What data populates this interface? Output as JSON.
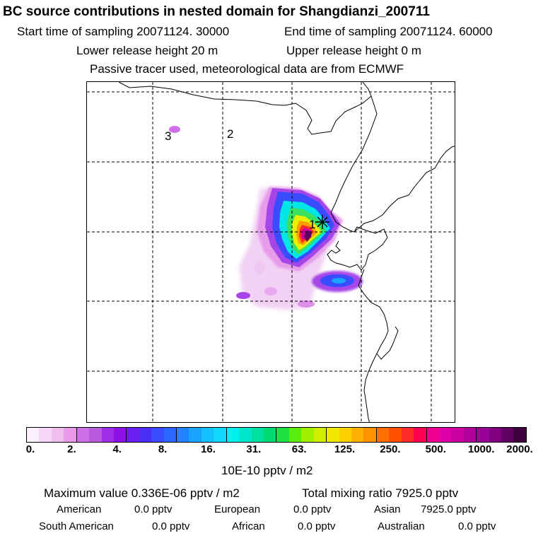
{
  "header": {
    "title": "BC  source contributions in nested domain for Shangdianzi_200711",
    "start_label": "Start time of sampling 20071124. 30000",
    "end_label": "End time of sampling 20071124. 60000",
    "lower_label": "Lower release height   20 m",
    "upper_label": "Upper release height    0 m",
    "tracer_note": "Passive tracer used, meteorological data are from ECMWF"
  },
  "map": {
    "markers": [
      {
        "label": "1"
      },
      {
        "label": "2"
      },
      {
        "label": "3"
      }
    ],
    "site_symbol": "asterisk-icon"
  },
  "colorbar": {
    "colors": [
      "#fdf0fd",
      "#f7d6f7",
      "#f0bdf0",
      "#e89ae8",
      "#d070e8",
      "#b85be0",
      "#a02ee8",
      "#8e12e8",
      "#6a1ff0",
      "#4a2ef5",
      "#3a4cff",
      "#2a66ff",
      "#1f85ff",
      "#1aa3ff",
      "#15c0ff",
      "#10d8ff",
      "#00f0f0",
      "#00e6cc",
      "#00e0a0",
      "#00d870",
      "#20e040",
      "#5aee10",
      "#a0f000",
      "#d0f000",
      "#f0e800",
      "#ffd000",
      "#ffb000",
      "#ff9200",
      "#ff7000",
      "#ff5000",
      "#ff2a2a",
      "#ff0050",
      "#f00090",
      "#e000a8",
      "#cc00a0",
      "#b0009a",
      "#980098",
      "#800080",
      "#600060",
      "#400040"
    ],
    "ticks": [
      "0.",
      "2.",
      "4.",
      "8.",
      "16.",
      "31.",
      "63.",
      "125.",
      "250.",
      "500.",
      "1000.",
      "2000."
    ],
    "units": "10E-10 pptv / m2"
  },
  "summary": {
    "max_value": "Maximum value  0.336E-06 pptv / m2",
    "total_mixing": "Total mixing ratio     7925.0 pptv",
    "american_label": "American",
    "american_value": "0.0 pptv",
    "european_label": "European",
    "european_value": "0.0 pptv",
    "asian_label": "Asian",
    "asian_value": "7925.0 pptv",
    "south_american_label": "South American",
    "south_american_value": "0.0 pptv",
    "african_label": "African",
    "african_value": "0.0 pptv",
    "australian_label": "Australian",
    "australian_value": "0.0 pptv"
  }
}
